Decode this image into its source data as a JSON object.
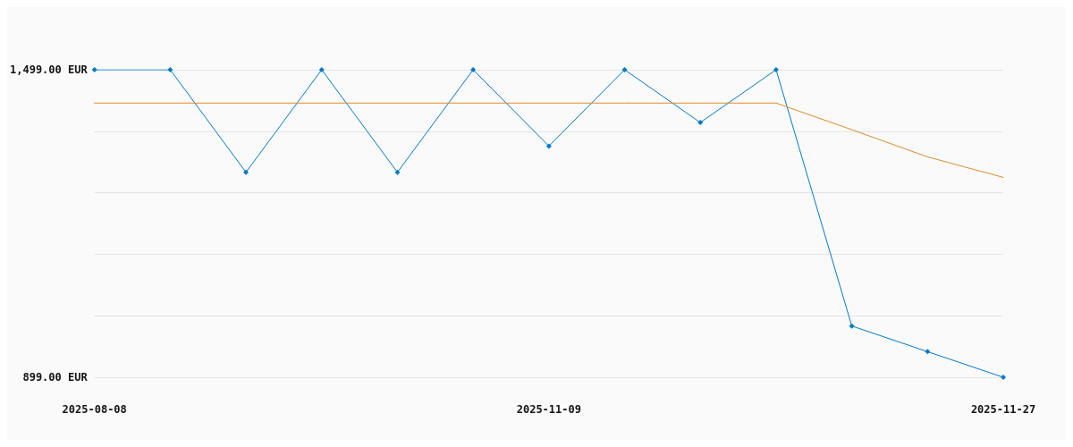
{
  "chart_data": {
    "type": "line",
    "categories": [
      "2025-08-08",
      null,
      null,
      null,
      null,
      null,
      "2025-11-09",
      null,
      null,
      null,
      null,
      null,
      "2025-11-27"
    ],
    "series": [
      {
        "color": "#0078c8",
        "marker": "diamond",
        "values": [
          1499,
          1499,
          1299,
          1499,
          1299,
          1499,
          1350,
          1499,
          1396,
          1499,
          999,
          949,
          899
        ]
      },
      {
        "color": "#e08a2a",
        "marker": "none",
        "values": [
          1434,
          1434,
          1434,
          1434,
          1434,
          1434,
          1434,
          1434,
          1434,
          1434,
          1382,
          1329,
          1289
        ]
      }
    ],
    "ylim": [
      899,
      1499
    ],
    "yticks": [
      {
        "value": 899,
        "label": "899.00 EUR"
      },
      {
        "value": 1019,
        "label": null
      },
      {
        "value": 1139,
        "label": null
      },
      {
        "value": 1259,
        "label": null
      },
      {
        "value": 1379,
        "label": null
      },
      {
        "value": 1499,
        "label": "1,499.00 EUR"
      }
    ],
    "grid": "y",
    "line_style": "solid"
  }
}
